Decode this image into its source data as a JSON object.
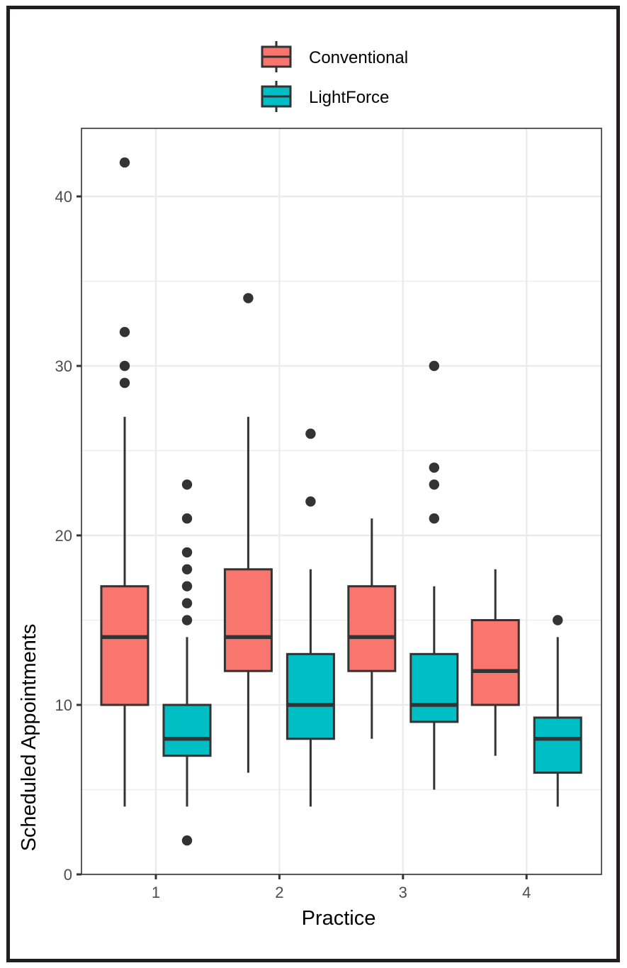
{
  "chart_data": {
    "type": "box",
    "title": "",
    "xlabel": "Practice",
    "ylabel": "Scheduled Appointments",
    "categories": [
      "1",
      "2",
      "3",
      "4"
    ],
    "ylim": [
      0,
      44
    ],
    "yticks": [
      0,
      10,
      20,
      30,
      40
    ],
    "ytick_labels": [
      "0",
      "10",
      "20",
      "30",
      "40"
    ],
    "grid": true,
    "legend_position": "top",
    "legend": [
      {
        "name": "Conventional",
        "color": "#F8766D"
      },
      {
        "name": "LightForce",
        "color": "#00BFC4"
      }
    ],
    "series": [
      {
        "name": "Conventional",
        "color": "#F8766D",
        "boxes": [
          {
            "category": "1",
            "whisker_low": 4,
            "q1": 10,
            "median": 14,
            "q3": 17,
            "whisker_high": 27,
            "outliers": [
              29,
              30,
              32,
              42
            ]
          },
          {
            "category": "2",
            "whisker_low": 6,
            "q1": 12,
            "median": 14,
            "q3": 18,
            "whisker_high": 27,
            "outliers": [
              34
            ]
          },
          {
            "category": "3",
            "whisker_low": 8,
            "q1": 12,
            "median": 14,
            "q3": 17,
            "whisker_high": 21,
            "outliers": []
          },
          {
            "category": "4",
            "whisker_low": 7,
            "q1": 10,
            "median": 12,
            "q3": 15,
            "whisker_high": 18,
            "outliers": []
          }
        ]
      },
      {
        "name": "LightForce",
        "color": "#00BFC4",
        "boxes": [
          {
            "category": "1",
            "whisker_low": 4,
            "q1": 7,
            "median": 8,
            "q3": 10,
            "whisker_high": 14,
            "outliers": [
              2,
              15,
              16,
              17,
              18,
              19,
              21,
              23
            ]
          },
          {
            "category": "2",
            "whisker_low": 4,
            "q1": 8,
            "median": 10,
            "q3": 13,
            "whisker_high": 18,
            "outliers": [
              22,
              26
            ]
          },
          {
            "category": "3",
            "whisker_low": 5,
            "q1": 9,
            "median": 10,
            "q3": 13,
            "whisker_high": 17,
            "outliers": [
              21,
              23,
              24,
              30
            ]
          },
          {
            "category": "4",
            "whisker_low": 4,
            "q1": 6,
            "median": 8,
            "q3": 9.25,
            "whisker_high": 14,
            "outliers": [
              15
            ]
          }
        ]
      }
    ]
  }
}
